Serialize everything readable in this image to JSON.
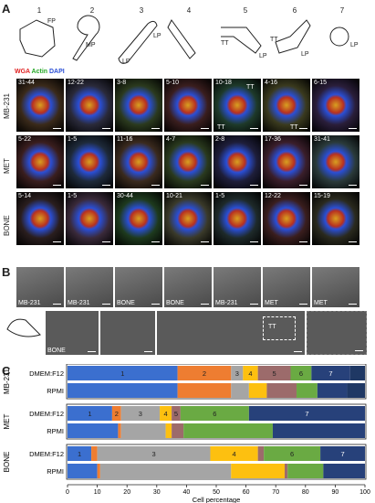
{
  "panels": {
    "A": "A",
    "B": "B",
    "C": "C"
  },
  "shapes": {
    "numbers": [
      "1",
      "2",
      "3",
      "4",
      "5",
      "6",
      "7"
    ],
    "labels": {
      "fp": "FP",
      "mp": "MP",
      "lp3a": "LP",
      "lp3b": "LP",
      "tt5": "TT",
      "lp5": "LP",
      "tt6": "TT",
      "lp6": "LP",
      "lp7": "LP"
    }
  },
  "legend": {
    "wga": "WGA",
    "actin": "Actin",
    "dapi": "DAPI",
    "colors": {
      "wga": "#e02020",
      "actin": "#27a827",
      "dapi": "#2a4fd6"
    }
  },
  "rows": [
    {
      "name": "MB-231",
      "cells": [
        "31-44",
        "12-22",
        "3-8",
        "5-10",
        "10-18",
        "4-16",
        "6-15"
      ]
    },
    {
      "name": "MET",
      "cells": [
        "5-22",
        "1-5",
        "11-16",
        "4-7",
        "2-8",
        "17-36",
        "31-41"
      ]
    },
    {
      "name": "BONE",
      "cells": [
        "5-14",
        "1-5",
        "30-44",
        "10-21",
        "1-5",
        "12-22",
        "15-19"
      ]
    }
  ],
  "tt_labels": [
    "TT",
    "TT",
    "TT"
  ],
  "sem_top": [
    "MB-231",
    "MB-231",
    "BONE",
    "BONE",
    "MB-231",
    "MET",
    "MET"
  ],
  "sem_bottom": {
    "label": "BONE",
    "tt": "TT"
  },
  "chart_data": {
    "type": "bar",
    "orientation": "horizontal-stacked",
    "xlabel": "Cell percentage",
    "xlim": [
      0,
      100
    ],
    "xticks": [
      0,
      10,
      20,
      30,
      40,
      50,
      60,
      70,
      80,
      90,
      100
    ],
    "groups": [
      {
        "name": "MB-231",
        "rows": [
          {
            "name": "DMEM:F12",
            "values": [
              37,
              18,
              4,
              5,
              11,
              7,
              13,
              5
            ]
          },
          {
            "name": "RPMI",
            "values": [
              37,
              18,
              6,
              6,
              10,
              7,
              10,
              6
            ]
          }
        ]
      },
      {
        "name": "MET",
        "rows": [
          {
            "name": "DMEM:F12",
            "values": [
              15,
              3,
              13,
              4,
              3,
              23,
              39,
              0
            ]
          },
          {
            "name": "RPMI",
            "values": [
              17,
              1,
              15,
              2,
              4,
              30,
              31,
              0
            ]
          }
        ]
      },
      {
        "name": "BONE",
        "rows": [
          {
            "name": "DMEM:F12",
            "values": [
              8,
              2,
              38,
              16,
              2,
              19,
              15,
              0
            ]
          },
          {
            "name": "RPMI",
            "values": [
              10,
              1,
              44,
              18,
              1,
              12,
              14,
              0
            ]
          }
        ]
      }
    ],
    "series": [
      {
        "name": "1",
        "color": "#3b6fcf"
      },
      {
        "name": "2",
        "color": "#ee7d31"
      },
      {
        "name": "3",
        "color": "#a5a5a5"
      },
      {
        "name": "4",
        "color": "#fdc010"
      },
      {
        "name": "5",
        "color": "#9c6b6b"
      },
      {
        "name": "6",
        "color": "#6aaa43"
      },
      {
        "name": "7",
        "color": "#27417a"
      },
      {
        "name": "",
        "color": "#1f3864"
      }
    ]
  }
}
